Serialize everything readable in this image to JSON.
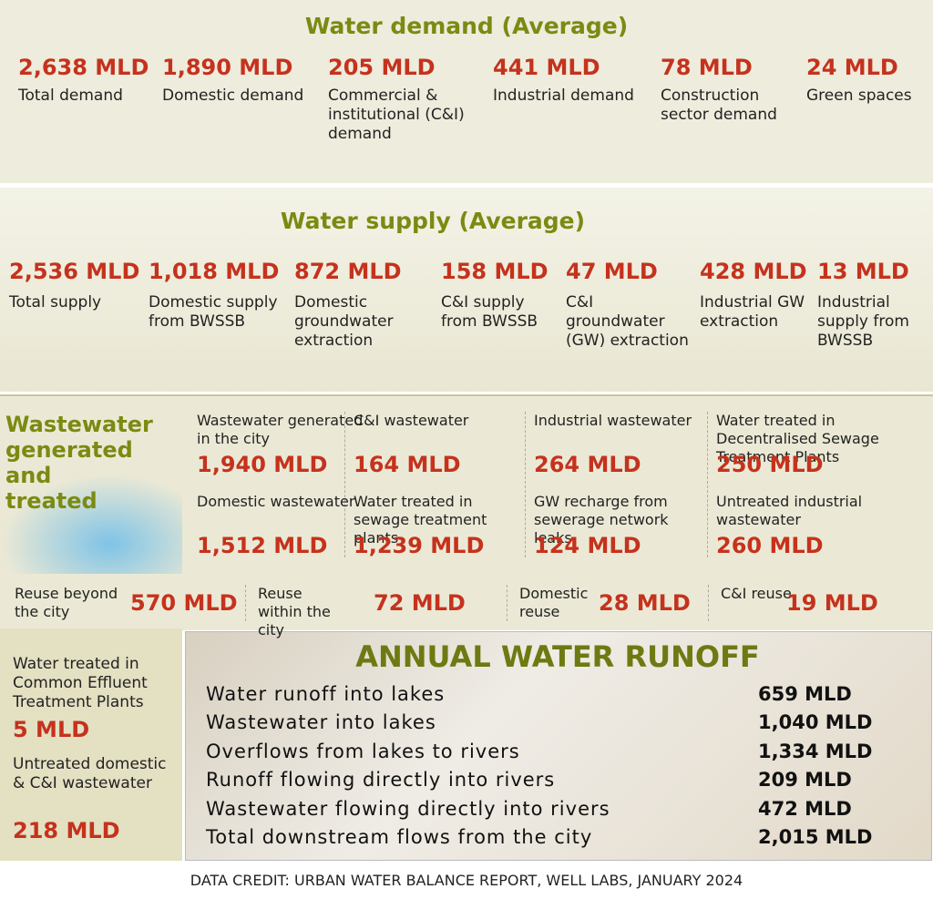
{
  "demand": {
    "title": "Water demand (Average)",
    "items": [
      {
        "value": "2,638 MLD",
        "label": "Total demand"
      },
      {
        "value": "1,890 MLD",
        "label": "Domestic demand"
      },
      {
        "value": "205 MLD",
        "label": "Commercial & institutional (C&I) demand"
      },
      {
        "value": "441 MLD",
        "label": "Industrial demand"
      },
      {
        "value": "78 MLD",
        "label": "Construction sector demand"
      },
      {
        "value": "24 MLD",
        "label": "Green spaces"
      }
    ]
  },
  "supply": {
    "title": "Water supply (Average)",
    "items": [
      {
        "value": "2,536 MLD",
        "label": "Total supply"
      },
      {
        "value": "1,018 MLD",
        "label": "Domestic supply from BWSSB"
      },
      {
        "value": "872 MLD",
        "label": "Domestic groundwater extraction"
      },
      {
        "value": "158 MLD",
        "label": "C&I supply from BWSSB"
      },
      {
        "value": "47 MLD",
        "label": "C&I groundwater (GW) extraction"
      },
      {
        "value": "428 MLD",
        "label": "Industrial GW extraction"
      },
      {
        "value": "13 MLD",
        "label": "Industrial supply from BWSSB"
      }
    ]
  },
  "wastewater": {
    "title": "Wastewater generated and treated",
    "items": [
      {
        "label": "Wastewater generated in the city",
        "value": "1,940 MLD"
      },
      {
        "label": "C&I wastewater",
        "value": "164 MLD"
      },
      {
        "label": "Industrial wastewater",
        "value": "264 MLD"
      },
      {
        "label": "Water treated in Decentralised Sewage Treatment Plants",
        "value": "250 MLD"
      },
      {
        "label": "Domestic wastewater",
        "value": "1,512 MLD"
      },
      {
        "label": "Water treated in sewage treatment plants",
        "value": "1,239 MLD"
      },
      {
        "label": "GW recharge from sewerage network leaks",
        "value": "124 MLD"
      },
      {
        "label": "Untreated industrial wastewater",
        "value": "260 MLD"
      }
    ]
  },
  "reuse": [
    {
      "label": "Reuse beyond the city",
      "value": "570 MLD"
    },
    {
      "label": "Reuse within the city",
      "value": "72 MLD"
    },
    {
      "label": "Domestic reuse",
      "value": "28 MLD"
    },
    {
      "label": "C&I reuse",
      "value": "19 MLD"
    }
  ],
  "side": [
    {
      "label": "Water treated in Common Effluent Treatment Plants",
      "value": "5 MLD"
    },
    {
      "label": "Untreated domestic & C&I wastewater",
      "value": "218 MLD"
    }
  ],
  "runoff": {
    "title": "ANNUAL WATER RUNOFF",
    "rows": [
      {
        "label": "Water runoff into lakes",
        "value": "659 MLD"
      },
      {
        "label": "Wastewater into lakes",
        "value": "1,040 MLD"
      },
      {
        "label": "Overflows from lakes to rivers",
        "value": "1,334 MLD"
      },
      {
        "label": "Runoff flowing directly into rivers",
        "value": "209 MLD"
      },
      {
        "label": "Wastewater flowing directly into rivers",
        "value": "472 MLD"
      },
      {
        "label": "Total downstream flows from the city",
        "value": "2,015 MLD"
      }
    ]
  },
  "credit": "DATA CREDIT: URBAN WATER BALANCE REPORT, WELL LABS, JANUARY 2024"
}
